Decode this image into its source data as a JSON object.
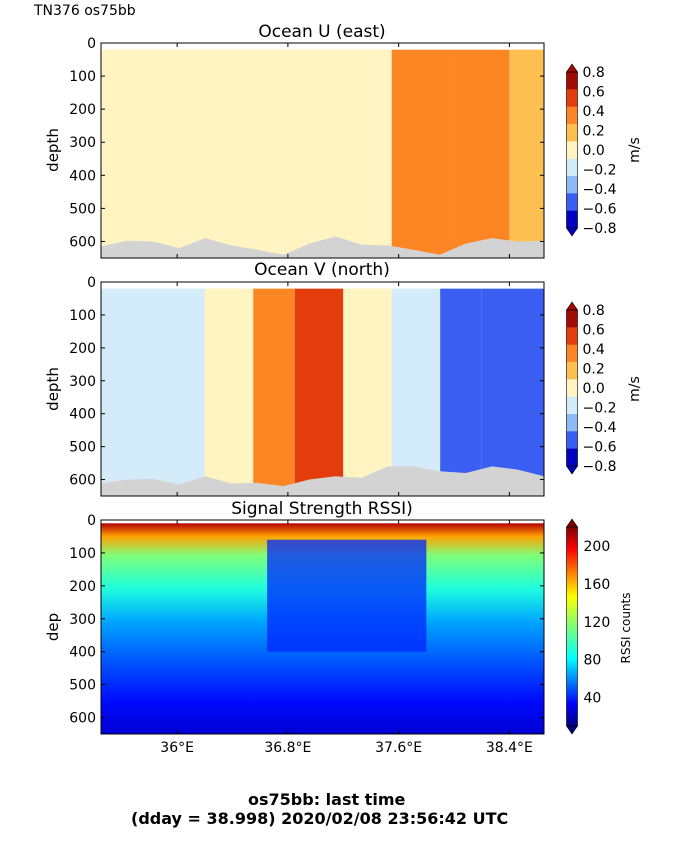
{
  "header_label": "TN376 os75bb",
  "footer": {
    "line1": "os75bb: last time",
    "line2": "(dday = 38.998) 2020/02/08 23:56:42 UTC"
  },
  "chart_data": [
    {
      "type": "heatmap",
      "title": "Ocean U (east)",
      "ylabel": "depth",
      "xlabel": "",
      "ylim": [
        650,
        0
      ],
      "yticks": [
        0,
        100,
        200,
        300,
        400,
        500,
        600
      ],
      "xlim": [
        35.45,
        38.65
      ],
      "colorbar": {
        "label": "m/s",
        "range": [
          -0.8,
          0.8
        ],
        "ticks": [
          "0.8",
          "0.6",
          "0.4",
          "0.2",
          "0.0",
          "−0.2",
          "−0.4",
          "−0.6",
          "−0.8"
        ],
        "levels": [
          -0.8,
          -0.6,
          -0.4,
          -0.2,
          0.0,
          0.2,
          0.4,
          0.6,
          0.8
        ],
        "colors": [
          "#0000c0",
          "#3a5ef2",
          "#8cbaf5",
          "#d4ecfa",
          "#fff4c2",
          "#fdc050",
          "#fd8624",
          "#e33d0e",
          "#a10a02"
        ]
      },
      "bands": [
        {
          "x": [
            35.45,
            36.3
          ],
          "value": 0.1
        },
        {
          "x": [
            36.3,
            36.6
          ],
          "value": 0.08
        },
        {
          "x": [
            36.6,
            37.1
          ],
          "value": 0.0
        },
        {
          "x": [
            37.1,
            37.45
          ],
          "value": 0.05
        },
        {
          "x": [
            37.45,
            37.55
          ],
          "value": 0.1
        },
        {
          "x": [
            37.55,
            38.0
          ],
          "value": 0.45
        },
        {
          "x": [
            38.0,
            38.4
          ],
          "value": 0.5
        },
        {
          "x": [
            38.4,
            38.65
          ],
          "value": 0.2
        }
      ],
      "bottom_depth": [
        615,
        598,
        600,
        620,
        590,
        612,
        625,
        640,
        606,
        585,
        610,
        612,
        625,
        640,
        606,
        590,
        600,
        598
      ]
    },
    {
      "type": "heatmap",
      "title": "Ocean V (north)",
      "ylabel": "depth",
      "xlabel": "",
      "ylim": [
        650,
        0
      ],
      "yticks": [
        0,
        100,
        200,
        300,
        400,
        500,
        600
      ],
      "xlim": [
        35.45,
        38.65
      ],
      "colorbar": {
        "label": "m/s",
        "range": [
          -0.8,
          0.8
        ],
        "ticks": [
          "0.8",
          "0.6",
          "0.4",
          "0.2",
          "0.0",
          "−0.2",
          "−0.4",
          "−0.6",
          "−0.8"
        ],
        "levels": [
          -0.8,
          -0.6,
          -0.4,
          -0.2,
          0.0,
          0.2,
          0.4,
          0.6,
          0.8
        ],
        "colors": [
          "#0000c0",
          "#3a5ef2",
          "#8cbaf5",
          "#d4ecfa",
          "#fff4c2",
          "#fdc050",
          "#fd8624",
          "#e33d0e",
          "#a10a02"
        ]
      },
      "bands": [
        {
          "x": [
            35.45,
            35.85
          ],
          "value": -0.15
        },
        {
          "x": [
            35.85,
            36.2
          ],
          "value": -0.25
        },
        {
          "x": [
            36.2,
            36.55
          ],
          "value": 0.05
        },
        {
          "x": [
            36.55,
            36.85
          ],
          "value": 0.35
        },
        {
          "x": [
            36.85,
            37.2
          ],
          "value": 0.55
        },
        {
          "x": [
            37.2,
            37.55
          ],
          "value": 0.1
        },
        {
          "x": [
            37.55,
            37.9
          ],
          "value": -0.3
        },
        {
          "x": [
            37.9,
            38.2
          ],
          "value": -0.55
        },
        {
          "x": [
            38.2,
            38.65
          ],
          "value": -0.7
        }
      ],
      "bottom_depth": [
        612,
        600,
        598,
        615,
        590,
        612,
        610,
        620,
        600,
        590,
        595,
        560,
        560,
        575,
        580,
        560,
        570,
        590
      ]
    },
    {
      "type": "heatmap",
      "title": "Signal Strength RSSI)",
      "ylabel": "dep",
      "xlabel": "",
      "ylim": [
        650,
        0
      ],
      "yticks": [
        0,
        100,
        200,
        300,
        400,
        500,
        600
      ],
      "xlim": [
        35.45,
        38.65
      ],
      "xticks": [
        36.0,
        36.8,
        37.6,
        38.4
      ],
      "xticklabels": [
        "36°E",
        "36.8°E",
        "37.6°E",
        "38.4°E"
      ],
      "colorbar": {
        "label": "RSSI counts",
        "range": [
          10,
          220
        ],
        "ticks": [
          "200",
          "160",
          "120",
          "80",
          "40"
        ],
        "tick_values": [
          200,
          160,
          120,
          80,
          40
        ]
      },
      "profile": [
        {
          "depth": 0,
          "rssi": 210
        },
        {
          "depth": 40,
          "rssi": 165
        },
        {
          "depth": 100,
          "rssi": 115
        },
        {
          "depth": 200,
          "rssi": 90
        },
        {
          "depth": 300,
          "rssi": 65
        },
        {
          "depth": 420,
          "rssi": 50
        },
        {
          "depth": 550,
          "rssi": 35
        },
        {
          "depth": 650,
          "rssi": 25
        }
      ],
      "low_region": {
        "x": [
          36.65,
          37.8
        ],
        "depth": [
          60,
          400
        ],
        "rssi": 40
      }
    }
  ]
}
